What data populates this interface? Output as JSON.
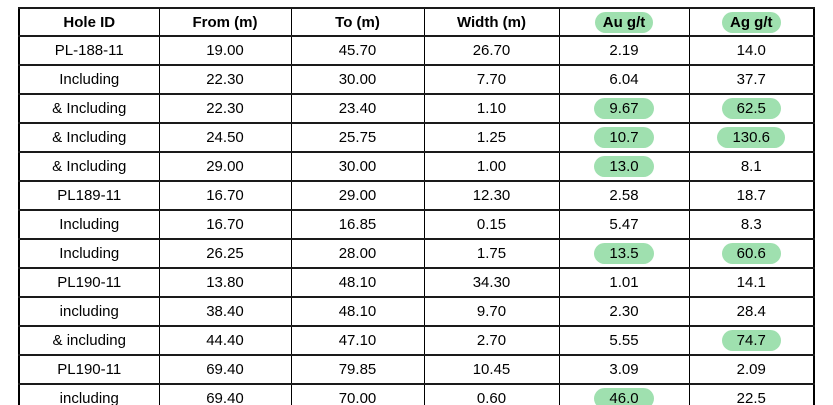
{
  "colors": {
    "highlight_green": "#9fe0af",
    "border": "#000000",
    "text": "#000000",
    "background": "#ffffff"
  },
  "table": {
    "columns": [
      {
        "key": "hole_id",
        "label": "Hole ID",
        "highlight": false
      },
      {
        "key": "from",
        "label": "From (m)",
        "highlight": false
      },
      {
        "key": "to",
        "label": "To (m)",
        "highlight": false
      },
      {
        "key": "width",
        "label": "Width (m)",
        "highlight": false
      },
      {
        "key": "au",
        "label": "Au g/t",
        "highlight": true
      },
      {
        "key": "ag",
        "label": "Ag g/t",
        "highlight": true
      }
    ],
    "rows": [
      {
        "hole_id": "PL-188-11",
        "hole_id_align": "left",
        "from": "19.00",
        "to": "45.70",
        "width": "26.70",
        "au": "2.19",
        "ag": "14.0",
        "au_highlight": false,
        "ag_highlight": false
      },
      {
        "hole_id": "Including",
        "hole_id_align": "center",
        "from": "22.30",
        "to": "30.00",
        "width": "7.70",
        "au": "6.04",
        "ag": "37.7",
        "au_highlight": false,
        "ag_highlight": false
      },
      {
        "hole_id": "& Including",
        "hole_id_align": "center",
        "from": "22.30",
        "to": "23.40",
        "width": "1.10",
        "au": "9.67",
        "ag": "62.5",
        "au_highlight": true,
        "ag_highlight": true
      },
      {
        "hole_id": "& Including",
        "hole_id_align": "center",
        "from": "24.50",
        "to": "25.75",
        "width": "1.25",
        "au": "10.7",
        "ag": "130.6",
        "au_highlight": true,
        "ag_highlight": true
      },
      {
        "hole_id": "& Including",
        "hole_id_align": "center",
        "from": "29.00",
        "to": "30.00",
        "width": "1.00",
        "au": "13.0",
        "ag": "8.1",
        "au_highlight": true,
        "ag_highlight": false
      },
      {
        "hole_id": "PL189-11",
        "hole_id_align": "left",
        "from": "16.70",
        "to": "29.00",
        "width": "12.30",
        "au": "2.58",
        "ag": "18.7",
        "au_highlight": false,
        "ag_highlight": false
      },
      {
        "hole_id": "Including",
        "hole_id_align": "right",
        "from": "16.70",
        "to": "16.85",
        "width": "0.15",
        "au": "5.47",
        "ag": "8.3",
        "au_highlight": false,
        "ag_highlight": false
      },
      {
        "hole_id": "Including",
        "hole_id_align": "right",
        "from": "26.25",
        "to": "28.00",
        "width": "1.75",
        "au": "13.5",
        "ag": "60.6",
        "au_highlight": true,
        "ag_highlight": true
      },
      {
        "hole_id": "PL190-11",
        "hole_id_align": "left",
        "from": "13.80",
        "to": "48.10",
        "width": "34.30",
        "au": "1.01",
        "ag": "14.1",
        "au_highlight": false,
        "ag_highlight": false
      },
      {
        "hole_id": "including",
        "hole_id_align": "right",
        "from": "38.40",
        "to": "48.10",
        "width": "9.70",
        "au": "2.30",
        "ag": "28.4",
        "au_highlight": false,
        "ag_highlight": false
      },
      {
        "hole_id": "& including",
        "hole_id_align": "center",
        "from": "44.40",
        "to": "47.10",
        "width": "2.70",
        "au": "5.55",
        "ag": "74.7",
        "au_highlight": false,
        "ag_highlight": true
      },
      {
        "hole_id": "PL190-11",
        "hole_id_align": "left",
        "from": "69.40",
        "to": "79.85",
        "width": "10.45",
        "au": "3.09",
        "ag": "2.09",
        "au_highlight": false,
        "ag_highlight": false
      },
      {
        "hole_id": "including",
        "hole_id_align": "right",
        "from": "69.40",
        "to": "70.00",
        "width": "0.60",
        "au": "46.0",
        "ag": "22.5",
        "au_highlight": true,
        "ag_highlight": false
      }
    ]
  }
}
